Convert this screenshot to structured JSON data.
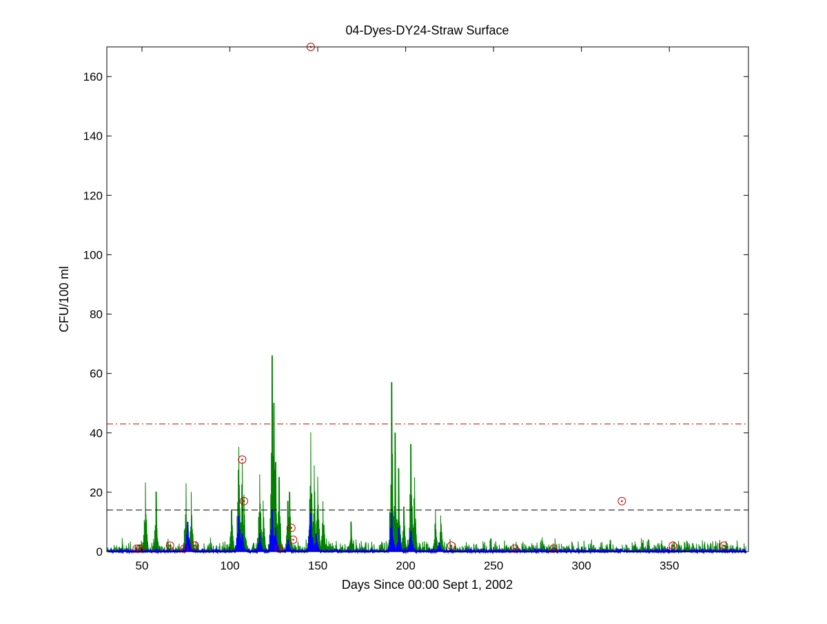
{
  "chart_data": {
    "type": "line",
    "title": "04-Dyes-DY24-Straw Surface",
    "xlabel": "Days Since 00:00 Sept 1, 2002",
    "ylabel": "CFU/100 ml",
    "xlim": [
      30,
      395
    ],
    "ylim": [
      0,
      170
    ],
    "xticks": [
      50,
      100,
      150,
      200,
      250,
      300,
      350
    ],
    "yticks": [
      0,
      20,
      40,
      60,
      80,
      100,
      120,
      140,
      160
    ],
    "xtick_labels": [
      "50",
      "100",
      "150",
      "200",
      "250",
      "300",
      "350"
    ],
    "ytick_labels": [
      "0",
      "20",
      "40",
      "60",
      "80",
      "100",
      "120",
      "140",
      "160"
    ],
    "grid": false,
    "legend": "none",
    "colors": {
      "green_series": "#008000",
      "blue_series": "#0000ff",
      "red_threshold": "#cc0000",
      "black_threshold": "#000000",
      "sample_markers": "#cc0000"
    },
    "reference_lines": [
      {
        "y": 43,
        "style": "dash-dot",
        "color": "#cc0000"
      },
      {
        "y": 14,
        "style": "dashed",
        "color": "#000000"
      }
    ],
    "green_peaks": [
      {
        "x": 52,
        "y": 23
      },
      {
        "x": 58,
        "y": 20
      },
      {
        "x": 75,
        "y": 23
      },
      {
        "x": 78,
        "y": 20
      },
      {
        "x": 101,
        "y": 14
      },
      {
        "x": 105,
        "y": 35
      },
      {
        "x": 107,
        "y": 30
      },
      {
        "x": 108,
        "y": 19
      },
      {
        "x": 117,
        "y": 26
      },
      {
        "x": 119,
        "y": 17
      },
      {
        "x": 124,
        "y": 66
      },
      {
        "x": 125,
        "y": 50
      },
      {
        "x": 126,
        "y": 30
      },
      {
        "x": 128,
        "y": 25
      },
      {
        "x": 133,
        "y": 17
      },
      {
        "x": 134,
        "y": 20
      },
      {
        "x": 146,
        "y": 40
      },
      {
        "x": 148,
        "y": 29
      },
      {
        "x": 150,
        "y": 25
      },
      {
        "x": 153,
        "y": 17
      },
      {
        "x": 169,
        "y": 10
      },
      {
        "x": 192,
        "y": 57
      },
      {
        "x": 194,
        "y": 40
      },
      {
        "x": 196,
        "y": 28
      },
      {
        "x": 199,
        "y": 15
      },
      {
        "x": 203,
        "y": 36
      },
      {
        "x": 205,
        "y": 25
      },
      {
        "x": 217,
        "y": 14
      },
      {
        "x": 220,
        "y": 12
      }
    ],
    "blue_peaks": [
      {
        "x": 76,
        "y": 10
      },
      {
        "x": 105,
        "y": 12
      },
      {
        "x": 107,
        "y": 6
      },
      {
        "x": 117,
        "y": 6
      },
      {
        "x": 124,
        "y": 14
      },
      {
        "x": 126,
        "y": 8
      },
      {
        "x": 133,
        "y": 4
      },
      {
        "x": 146,
        "y": 13
      },
      {
        "x": 149,
        "y": 6
      },
      {
        "x": 192,
        "y": 13
      },
      {
        "x": 196,
        "y": 8
      },
      {
        "x": 203,
        "y": 7
      },
      {
        "x": 219,
        "y": 3
      }
    ],
    "sample_points": [
      {
        "x": 47,
        "y": 1
      },
      {
        "x": 49,
        "y": 1
      },
      {
        "x": 66,
        "y": 2
      },
      {
        "x": 74,
        "y": 1
      },
      {
        "x": 80,
        "y": 2
      },
      {
        "x": 107,
        "y": 31
      },
      {
        "x": 108,
        "y": 17
      },
      {
        "x": 128,
        "y": 1
      },
      {
        "x": 135,
        "y": 8
      },
      {
        "x": 136,
        "y": 4
      },
      {
        "x": 146,
        "y": 170
      },
      {
        "x": 226,
        "y": 2
      },
      {
        "x": 262,
        "y": 1
      },
      {
        "x": 284,
        "y": 1
      },
      {
        "x": 323,
        "y": 17
      },
      {
        "x": 352,
        "y": 2
      },
      {
        "x": 381,
        "y": 2
      }
    ]
  }
}
